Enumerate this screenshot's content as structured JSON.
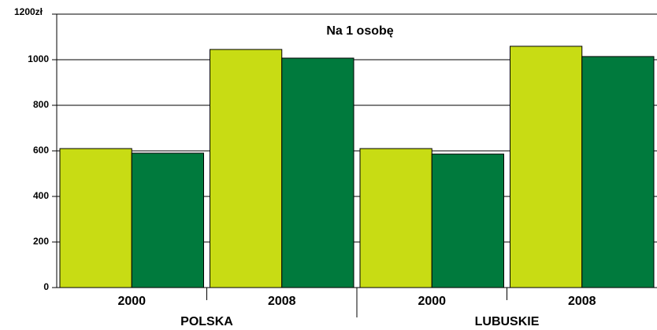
{
  "chart_data": {
    "type": "bar",
    "title": "Na 1 osobę",
    "categories": [
      "2000",
      "2008",
      "2000",
      "2008"
    ],
    "groups": [
      "POLSKA",
      "LUBUSKIE"
    ],
    "group_color": "#1a8a3a",
    "series": [
      {
        "color": "#c8dc14",
        "values": [
          610,
          1045,
          610,
          1059
        ]
      },
      {
        "color": "#007a3d",
        "values": [
          590,
          1007,
          586,
          1014
        ]
      }
    ],
    "ylim": [
      0,
      1200
    ],
    "yticks": [
      0,
      200,
      400,
      600,
      800,
      1000,
      {
        "value": 1200,
        "label": "1200zł"
      }
    ],
    "grid": true
  }
}
